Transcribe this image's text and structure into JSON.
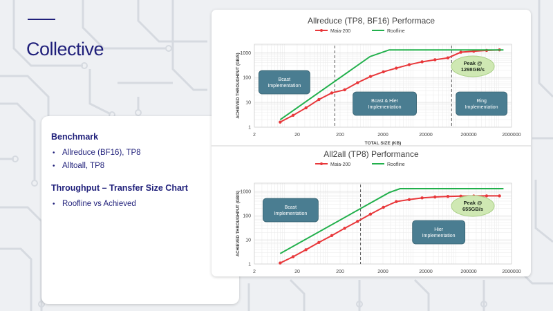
{
  "slide": {
    "title": "Collective"
  },
  "card": {
    "heading1": "Benchmark",
    "bullets1": [
      "Allreduce (BF16), TP8",
      "Alltoall, TP8"
    ],
    "heading2": "Throughput – Transfer Size Chart",
    "bullets2": [
      "Roofline vs Achieved"
    ]
  },
  "colors": {
    "accent": "#1f1f7a",
    "achieved": "#e8373a",
    "roofline": "#22b04c",
    "region_fill": "#4a7d91",
    "peak_fill": "#cfe8b3"
  },
  "chart_data": [
    {
      "type": "line",
      "title": "Allreduce (TP8, BF16) Performace",
      "xlabel": "TOTAL SIZE (KB)",
      "ylabel": "ACHIEVED THROUGHPUT (GB/S)",
      "x_scale": "log",
      "y_scale": "log",
      "xlim": [
        2,
        2000000
      ],
      "ylim": [
        1,
        1000
      ],
      "x_ticks": [
        "2",
        "20",
        "200",
        "2000",
        "20000",
        "200000",
        "2000000"
      ],
      "y_ticks": [
        "1",
        "10",
        "100",
        "1000"
      ],
      "grid": true,
      "legend": "top-center",
      "series": [
        {
          "name": "Maia-200",
          "x": [
            8,
            16,
            32,
            64,
            128,
            256,
            512,
            1024,
            2048,
            4096,
            8192,
            16384,
            32768,
            65536,
            131072,
            262144,
            524288,
            1048576
          ],
          "y": [
            1.6,
            3,
            6,
            13,
            24,
            32,
            62,
            110,
            170,
            240,
            330,
            430,
            520,
            620,
            1050,
            1150,
            1240,
            1298
          ]
        },
        {
          "name": "Roofline",
          "x": [
            8,
            1000,
            2800,
            1300000
          ],
          "y": [
            2,
            700,
            1300,
            1300
          ]
        }
      ],
      "annotations": [
        {
          "text": "Bcast Implementation",
          "x": 10
        },
        {
          "text": "Bcast & Hier Implementation",
          "x": 2200
        },
        {
          "text": "Ring Implementation",
          "x": 400000
        },
        {
          "text": "Peak @ 1298GB/s",
          "x": 250000
        }
      ],
      "dividers_x": [
        150,
        80000
      ]
    },
    {
      "type": "line",
      "title": "All2all (TP8) Performance",
      "xlabel": "TOTAL SIZE (KB)",
      "ylabel": "ACHIEVED THROUGHPUT (GB/S)",
      "x_scale": "log",
      "y_scale": "log",
      "xlim": [
        2,
        2000000
      ],
      "ylim": [
        1,
        1000
      ],
      "x_ticks": [
        "2",
        "20",
        "200",
        "2000",
        "20000",
        "200000",
        "2000000"
      ],
      "y_ticks": [
        "1",
        "10",
        "100",
        "1000"
      ],
      "grid": true,
      "legend": "top-center",
      "series": [
        {
          "name": "Maia-200",
          "x": [
            8,
            16,
            32,
            64,
            128,
            256,
            512,
            1024,
            2048,
            4096,
            8192,
            16384,
            32768,
            65536,
            131072,
            262144,
            524288,
            1048576
          ],
          "y": [
            1.1,
            2,
            3.9,
            7.8,
            15,
            30,
            58,
            115,
            220,
            380,
            460,
            540,
            590,
            620,
            640,
            650,
            655,
            655
          ]
        },
        {
          "name": "Roofline",
          "x": [
            8,
            2800,
            5000,
            1300000
          ],
          "y": [
            2.7,
            900,
            1300,
            1300
          ]
        }
      ],
      "annotations": [
        {
          "text": "Bcast Implementation",
          "x": 14
        },
        {
          "text": "Hier Implementation",
          "x": 40000
        },
        {
          "text": "Peak @ 655GB/s",
          "x": 250000
        }
      ],
      "dividers_x": [
        600
      ]
    }
  ]
}
